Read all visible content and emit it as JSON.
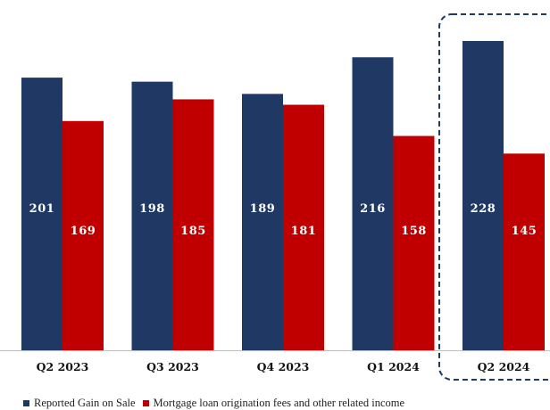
{
  "chart_data": {
    "type": "bar",
    "categories": [
      "Q2 2023",
      "Q3 2023",
      "Q4 2023",
      "Q1 2024",
      "Q2 2024"
    ],
    "series": [
      {
        "name": "Reported Gain on Sale",
        "values": [
          201,
          198,
          189,
          216,
          228
        ]
      },
      {
        "name": "Mortgage loan origination fees and other related income",
        "values": [
          169,
          185,
          181,
          158,
          145
        ]
      }
    ],
    "highlighted_category": "Q2 2024",
    "ylim": [
      0,
      228
    ],
    "grid": false,
    "legend_position": "bottom",
    "colors": {
      "series_0": "#1f3864",
      "series_1": "#c00000",
      "highlight_border": "#1f3864",
      "axis": "#bfbfbf"
    }
  }
}
